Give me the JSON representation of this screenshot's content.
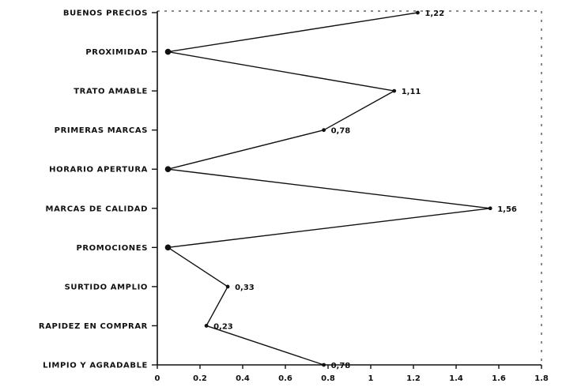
{
  "chart_data": {
    "type": "line",
    "orientation": "horizontal",
    "categories": [
      "BUENOS PRECIOS",
      "PROXIMIDAD",
      "TRATO AMABLE",
      "PRIMERAS MARCAS",
      "HORARIO APERTURA",
      "MARCAS DE CALIDAD",
      "PROMOCIONES",
      "SURTIDO AMPLIO",
      "RAPIDEZ EN COMPRAR",
      "LIMPIO Y AGRADABLE"
    ],
    "values": [
      1.22,
      0.05,
      1.11,
      0.78,
      0.05,
      1.56,
      0.05,
      0.33,
      0.23,
      0.78
    ],
    "data_labels": [
      "1,22",
      "",
      "1,11",
      "0,78",
      "",
      "1,56",
      "",
      "0,33",
      "0,23",
      "0,78"
    ],
    "x_ticks": [
      "0",
      "0.2",
      "0.4",
      "0.6",
      "0.8",
      "1",
      "1.2",
      "1.4",
      "1.6",
      "1.8"
    ],
    "xlim": [
      0,
      1.8
    ],
    "title": "",
    "xlabel": "",
    "ylabel": "",
    "grid": false,
    "line_color": "#111111"
  }
}
